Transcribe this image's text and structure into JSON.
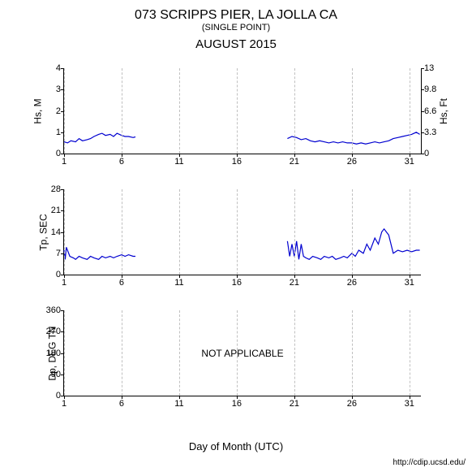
{
  "header": {
    "title": "073 SCRIPPS PIER, LA JOLLA CA",
    "subtitle": "(SINGLE POINT)",
    "month": "AUGUST 2015"
  },
  "xaxis": {
    "label": "Day of Month (UTC)",
    "min": 1,
    "max": 32,
    "ticks": [
      1,
      6,
      11,
      16,
      21,
      26,
      31
    ]
  },
  "credit": "http://cdip.ucsd.edu/",
  "colors": {
    "line": "#0000d0",
    "grid": "#c0c0c0",
    "axis": "#000000",
    "text": "#000000",
    "background": "#ffffff"
  },
  "line_width": 1.2,
  "panels": [
    {
      "id": "hs",
      "type": "line",
      "ylabel": "Hs, M",
      "ylabel_right": "Hs, Ft",
      "ylim": [
        0,
        4
      ],
      "yticks": [
        0,
        1,
        2,
        3,
        4
      ],
      "yticks_right": [
        0,
        3.3,
        6.6,
        9.8,
        13
      ],
      "segments": [
        {
          "x": [
            1,
            1.3,
            1.6,
            2,
            2.3,
            2.6,
            3,
            3.3,
            3.6,
            4,
            4.3,
            4.6,
            5,
            5.3,
            5.6,
            6,
            6.3,
            6.6,
            7,
            7.2
          ],
          "y": [
            0.55,
            0.5,
            0.6,
            0.55,
            0.7,
            0.6,
            0.65,
            0.7,
            0.8,
            0.9,
            0.95,
            0.85,
            0.9,
            0.8,
            0.95,
            0.85,
            0.8,
            0.8,
            0.75,
            0.78
          ]
        },
        {
          "x": [
            20.4,
            20.8,
            21.2,
            21.6,
            22,
            22.4,
            22.8,
            23.2,
            23.6,
            24,
            24.4,
            24.8,
            25.2,
            25.6,
            26,
            26.4,
            26.8,
            27.2,
            27.6,
            28,
            28.4,
            28.8,
            29.2,
            29.6,
            30,
            30.4,
            30.8,
            31.2,
            31.6,
            31.9
          ],
          "y": [
            0.7,
            0.8,
            0.75,
            0.65,
            0.7,
            0.6,
            0.55,
            0.6,
            0.55,
            0.5,
            0.55,
            0.5,
            0.55,
            0.5,
            0.5,
            0.45,
            0.5,
            0.45,
            0.5,
            0.55,
            0.5,
            0.55,
            0.6,
            0.7,
            0.75,
            0.8,
            0.85,
            0.9,
            1.0,
            0.9
          ]
        }
      ]
    },
    {
      "id": "tp",
      "type": "line",
      "ylabel": "Tp, SEC",
      "ylim": [
        0,
        28
      ],
      "yticks": [
        0,
        7,
        14,
        21,
        28
      ],
      "segments": [
        {
          "x": [
            1,
            1.1,
            1.2,
            1.5,
            1.8,
            2,
            2.3,
            2.6,
            3,
            3.3,
            3.6,
            4,
            4.3,
            4.6,
            5,
            5.3,
            5.6,
            6,
            6.3,
            6.6,
            7,
            7.2
          ],
          "y": [
            8,
            5,
            9,
            6,
            5.5,
            5,
            6,
            5.5,
            5,
            6,
            5.5,
            5,
            6,
            5.5,
            6,
            5.5,
            6,
            6.5,
            6,
            6.5,
            6,
            6
          ]
        },
        {
          "x": [
            20.4,
            20.6,
            20.8,
            21,
            21.2,
            21.4,
            21.6,
            21.8,
            22,
            22.3,
            22.6,
            23,
            23.3,
            23.6,
            24,
            24.3,
            24.6,
            25,
            25.3,
            25.6,
            26,
            26.3,
            26.6,
            27,
            27.3,
            27.6,
            28,
            28.3,
            28.6,
            28.8,
            29,
            29.2,
            29.6,
            30,
            30.4,
            30.8,
            31.2,
            31.6,
            31.9
          ],
          "y": [
            11,
            6,
            10,
            6,
            11,
            5,
            10,
            6,
            5.5,
            5,
            6,
            5.5,
            5,
            6,
            5.5,
            6,
            5,
            5.5,
            6,
            5.5,
            7,
            6,
            8,
            7,
            10,
            8,
            12,
            10,
            14,
            15,
            14,
            13,
            7,
            8,
            7.5,
            8,
            7.5,
            8,
            8
          ]
        }
      ]
    },
    {
      "id": "dp",
      "type": "empty",
      "ylabel": "Dp, DEG TN",
      "ylim": [
        0,
        360
      ],
      "yticks": [
        0,
        90,
        180,
        270,
        360
      ],
      "overlay_text": "NOT APPLICABLE"
    }
  ]
}
